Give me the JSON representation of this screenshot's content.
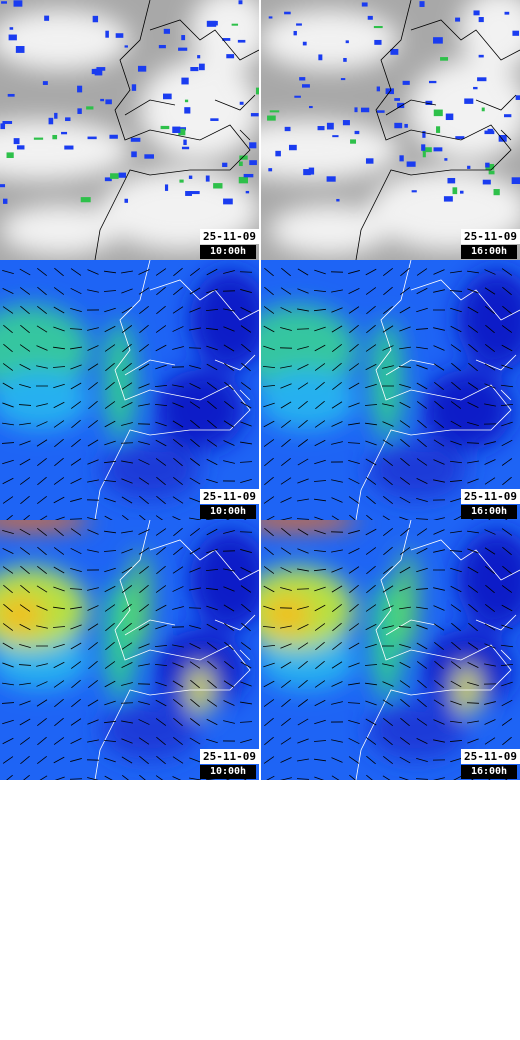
{
  "panels": [
    {
      "date": "25-11-09",
      "time": "10:00h"
    },
    {
      "date": "25-11-09",
      "time": "16:00h"
    },
    {
      "date": "25-11-09",
      "time": "10:00h"
    },
    {
      "date": "25-11-09",
      "time": "16:00h"
    },
    {
      "date": "25-11-09",
      "time": "10:00h"
    },
    {
      "date": "25-11-09",
      "time": "16:00h"
    }
  ]
}
